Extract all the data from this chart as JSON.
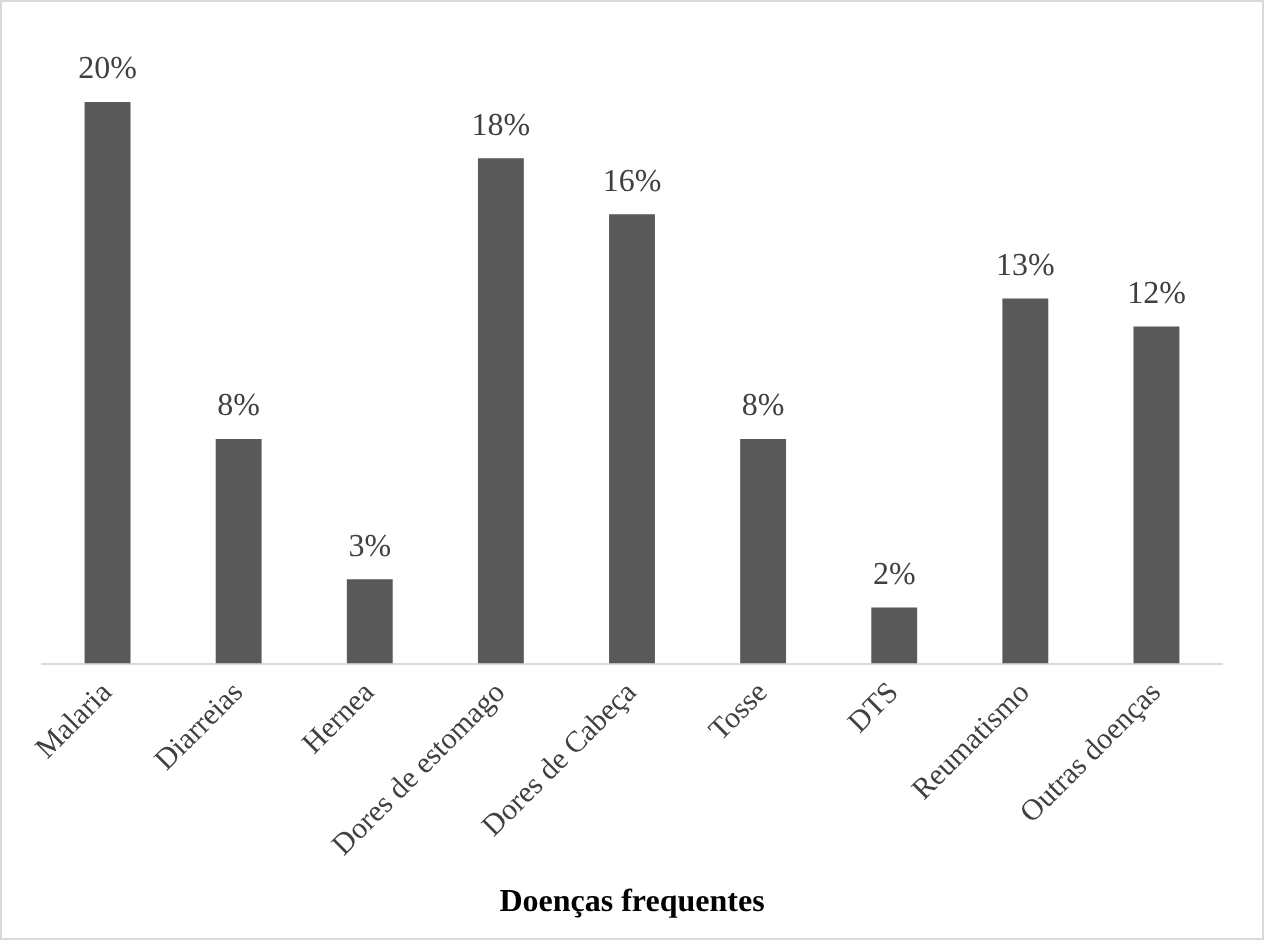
{
  "chart_data": {
    "type": "bar",
    "xlabel": "Doenças frequentes",
    "categories": [
      "Malaria",
      "Diarreias",
      "Hernea",
      "Dores de estomago",
      "Dores de Cabeça",
      "Tosse",
      "DTS",
      "Reumatismo",
      "Outras doenças"
    ],
    "values": [
      20,
      8,
      3,
      18,
      16,
      8,
      2,
      13,
      12
    ],
    "value_labels": [
      "20%",
      "8%",
      "3%",
      "18%",
      "16%",
      "8%",
      "2%",
      "13%",
      "12%"
    ],
    "color": "#595959",
    "grid": false,
    "legend": false
  }
}
